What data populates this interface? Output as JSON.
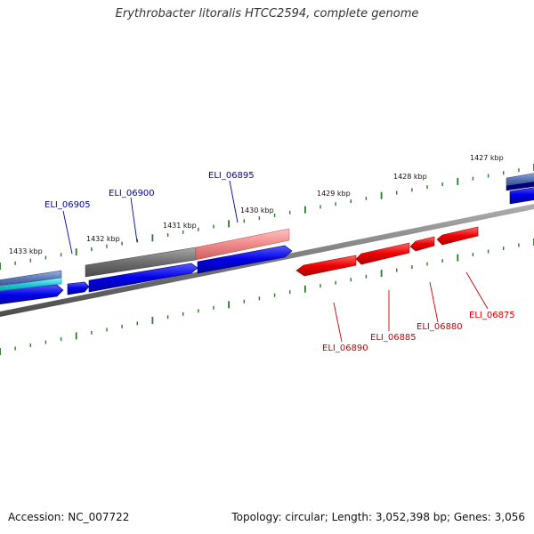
{
  "title": "Erythrobacter litoralis HTCC2594, complete genome",
  "footer": {
    "accession": "Accession: NC_007722",
    "summary": "Topology: circular; Length: 3,052,398 bp; Genes: 3,056"
  },
  "colors": {
    "forward_gene": "#0000e6",
    "reverse_gene": "#ee0000",
    "label_forward": "#0000aa",
    "label_reverse": "#cc0000",
    "tick": "#2a7a2a",
    "backbone": "#7a7a7a",
    "pseudogene_gray": "#6e6e6e",
    "pseudogene_pink": "#f08a8a",
    "cyan_gene": "#20c8d8",
    "steel_gene": "#5a78b8"
  },
  "scale_labels": [
    "1433 kbp",
    "1432 kbp",
    "1431 kbp",
    "1430 kbp",
    "1429 kbp",
    "1428 kbp",
    "1427 kbp"
  ],
  "forward_gene_labels": [
    "ELI_06905",
    "ELI_06900",
    "ELI_06895"
  ],
  "reverse_gene_labels": [
    "ELI_06890",
    "ELI_06885",
    "ELI_06880",
    "ELI_06875"
  ]
}
